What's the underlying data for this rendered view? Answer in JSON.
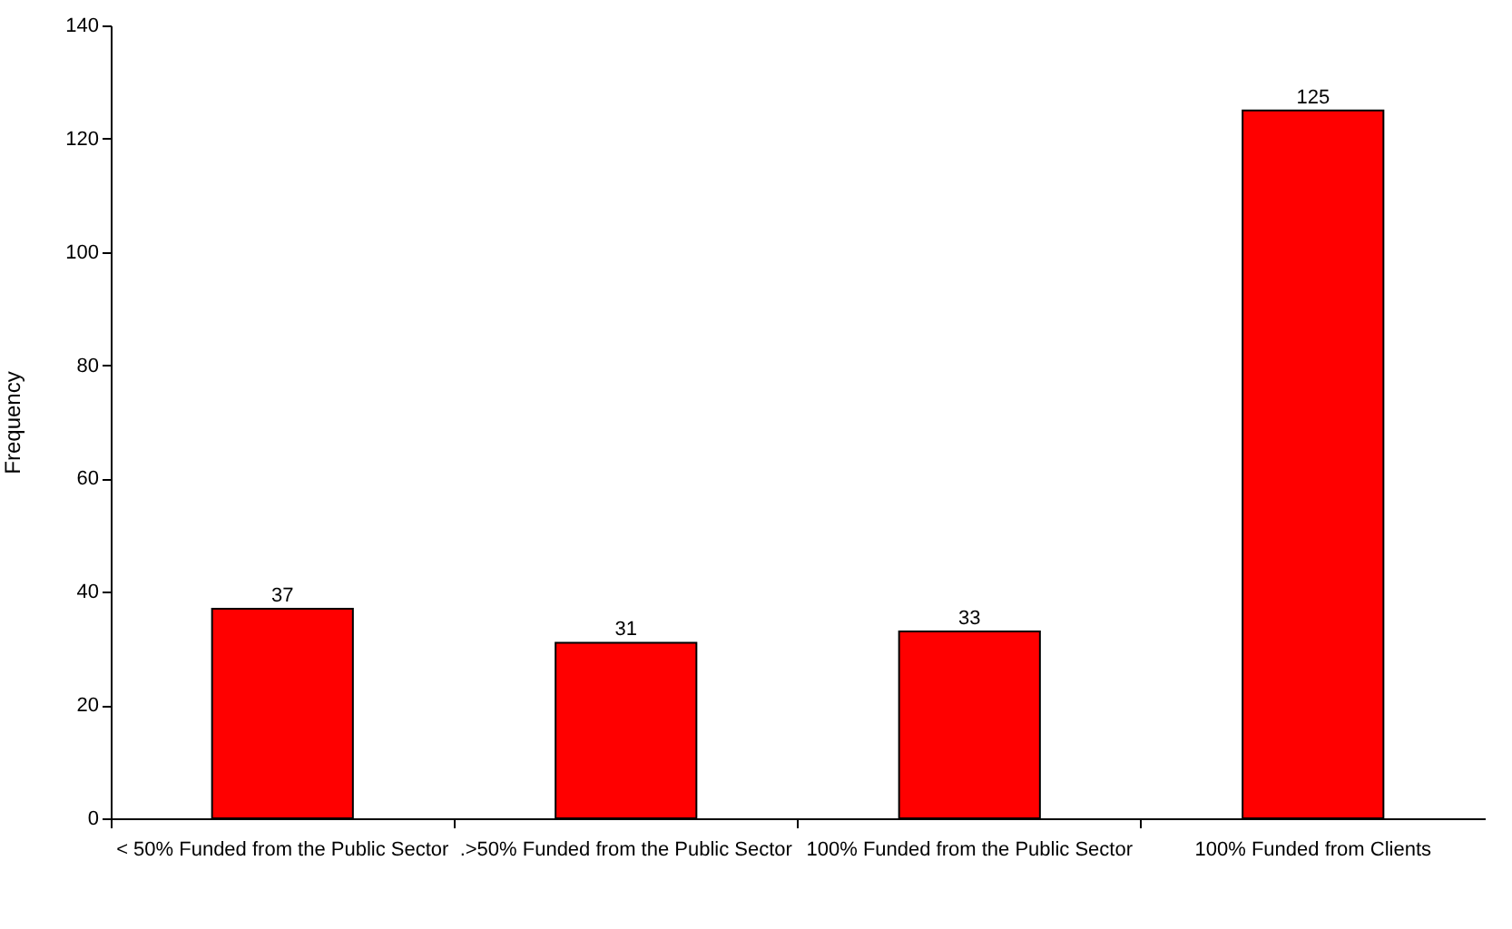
{
  "chart_data": {
    "type": "bar",
    "ylabel": "Frequency",
    "categories": [
      "< 50% Funded from the Public Sector",
      ".>50% Funded from the Public Sector",
      "100% Funded from the Public Sector",
      "100% Funded from Clients"
    ],
    "values": [
      37,
      31,
      33,
      125
    ],
    "color": "#ff0000",
    "ylim": [
      0,
      140
    ],
    "yticks": [
      0,
      20,
      40,
      60,
      80,
      100,
      120,
      140
    ],
    "grid": false,
    "data_labels": true
  }
}
